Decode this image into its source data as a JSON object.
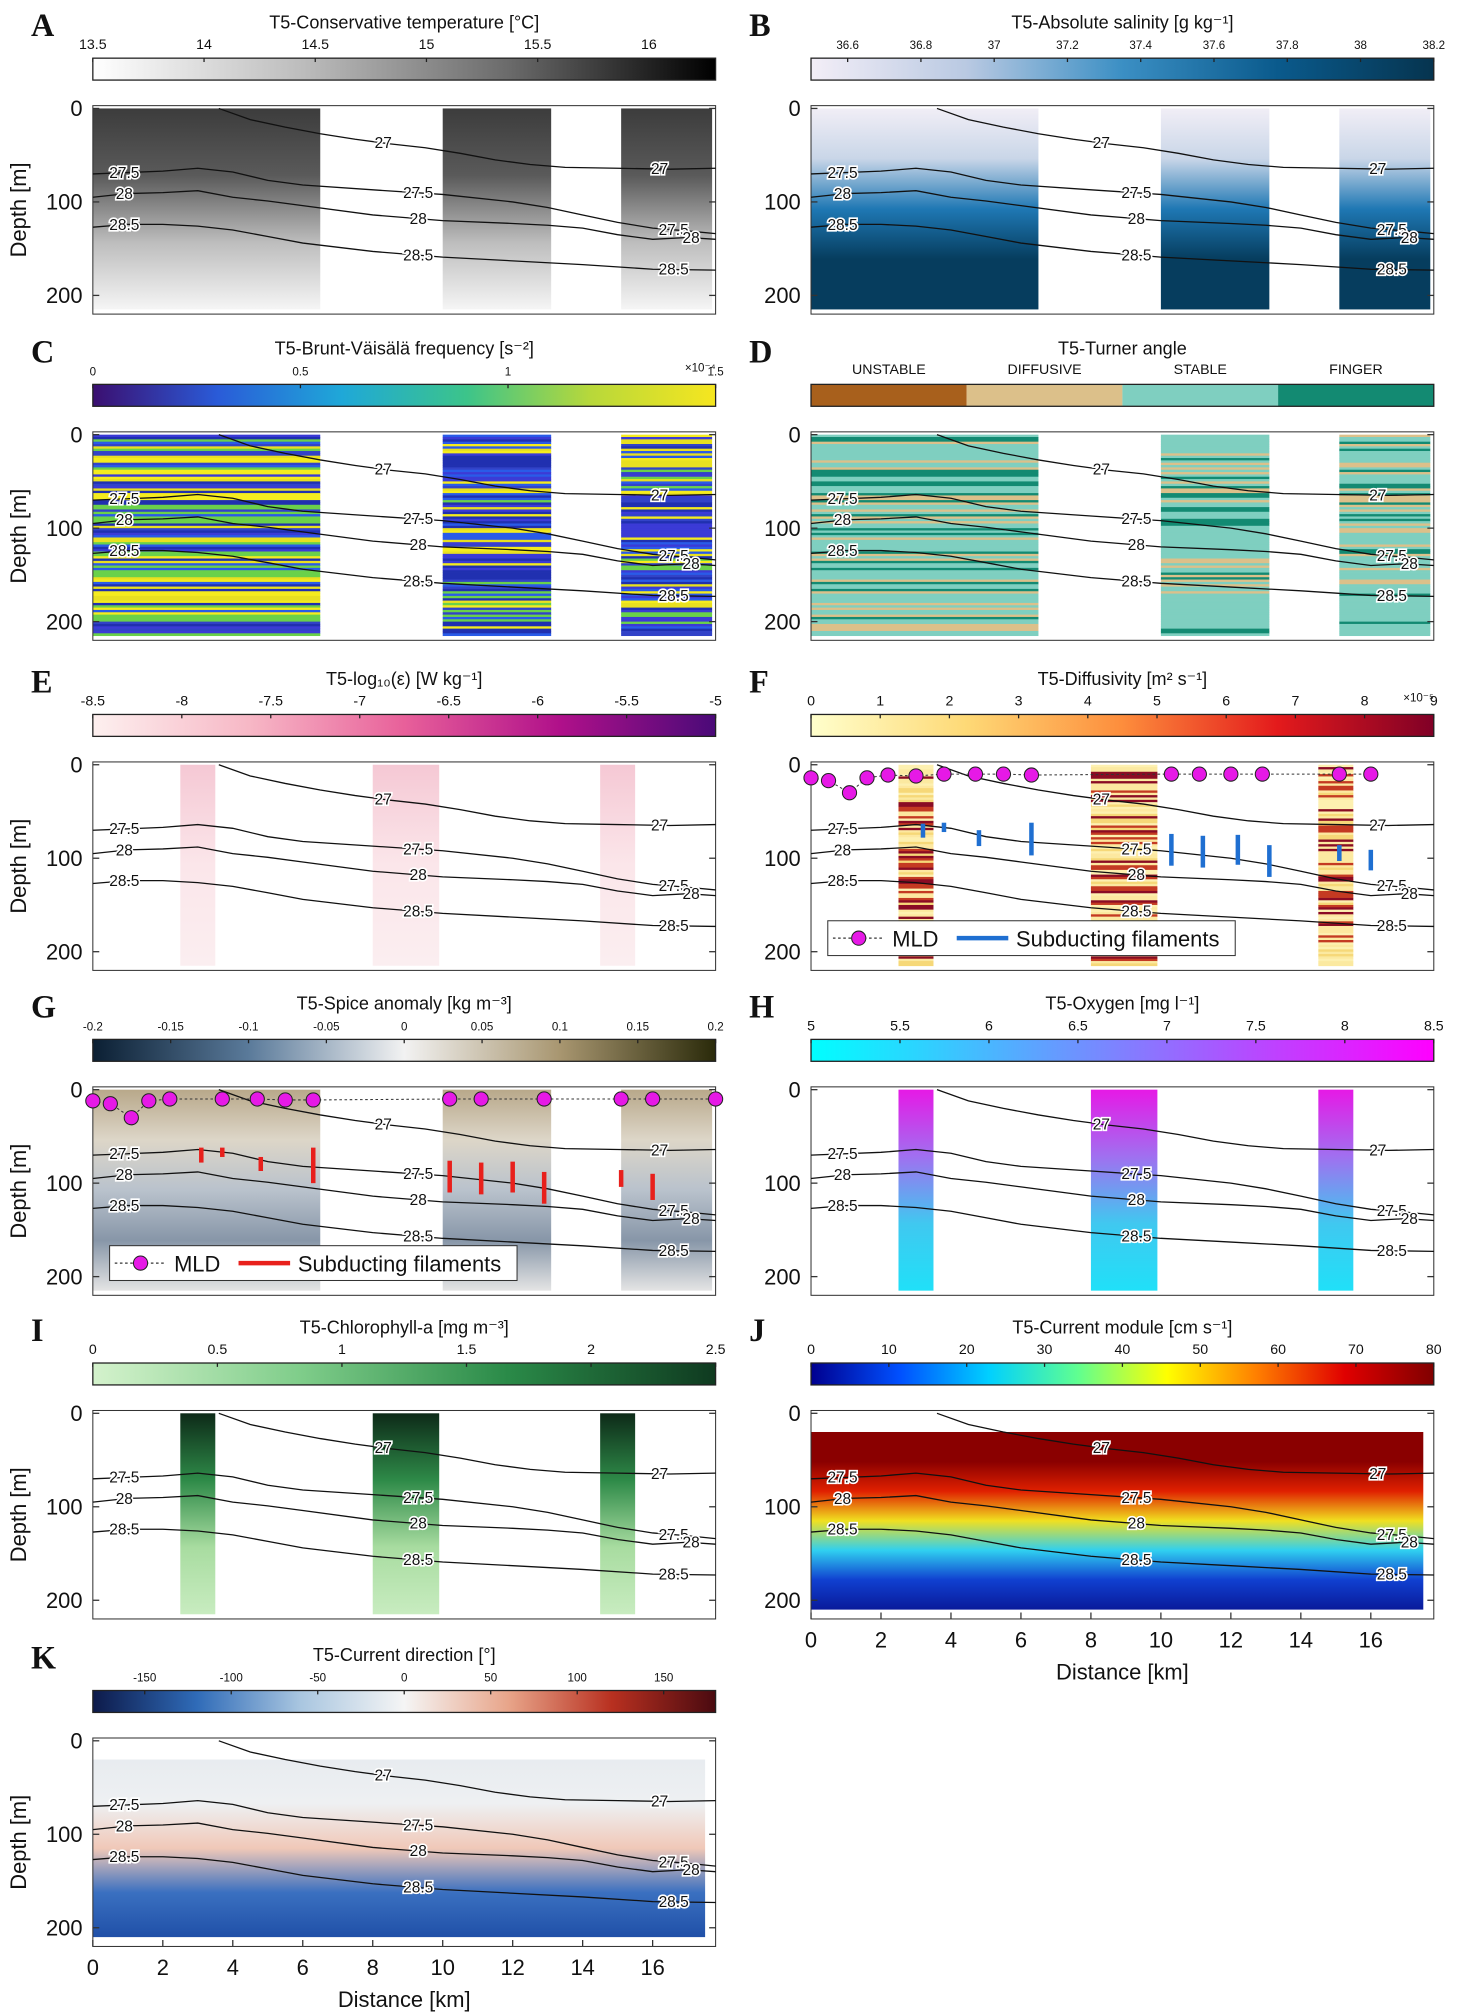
{
  "isopycnals": [
    {
      "level": 27,
      "distance": [
        3.6,
        4.5,
        5.5,
        6.5,
        7.5,
        8.5,
        9.5,
        10.5,
        11.5,
        12.5,
        13.5,
        15,
        16.5,
        17.8
      ],
      "depth": [
        0,
        12,
        20,
        27,
        33,
        38,
        42,
        48,
        55,
        60,
        63,
        64,
        65,
        64
      ]
    },
    {
      "level": 27.5,
      "distance": [
        0,
        2,
        3,
        4,
        5,
        6,
        8,
        10,
        12,
        13,
        14,
        15,
        16,
        17,
        17.8
      ],
      "depth": [
        70,
        67,
        64,
        68,
        77,
        82,
        87,
        92,
        100,
        106,
        114,
        122,
        128,
        131,
        134
      ]
    },
    {
      "level": 28,
      "distance": [
        0,
        1,
        2,
        3,
        4,
        5,
        6,
        8,
        10,
        12,
        13,
        14,
        15,
        16,
        17,
        17.8
      ],
      "depth": [
        95,
        91,
        90,
        88,
        95,
        99,
        104,
        114,
        120,
        123,
        125,
        128,
        135,
        140,
        138,
        140
      ]
    },
    {
      "level": 28.5,
      "distance": [
        0,
        1,
        2,
        3,
        4,
        5,
        6,
        8,
        10,
        12,
        14,
        16,
        17.8
      ],
      "depth": [
        127,
        124,
        124,
        126,
        130,
        137,
        144,
        153,
        159,
        163,
        167,
        172,
        173
      ]
    }
  ],
  "chart_data": [
    {
      "type": "section",
      "panel": "A",
      "title": "T5-Conservative temperature [°C]",
      "colorbar": {
        "lim": [
          13.5,
          16.3
        ],
        "ticks": [
          13.5,
          14,
          14.5,
          15,
          15.5,
          16
        ],
        "colormap": [
          "#ffffff",
          "#bdbdbd",
          "#6b6b6b",
          "#000000"
        ]
      },
      "ylabel": "Depth [m]",
      "ylim": [
        -3,
        220
      ],
      "yticks": [
        0,
        100,
        200
      ],
      "xlim": [
        0,
        17.8
      ]
    },
    {
      "type": "section",
      "panel": "B",
      "title": "T5-Absolute salinity [g kg⁻¹]",
      "colorbar": {
        "lim": [
          36.5,
          38.2
        ],
        "ticks": [
          36.6,
          36.8,
          37,
          37.2,
          37.4,
          37.6,
          37.8,
          38,
          38.2
        ],
        "colormap": [
          "#f3eef7",
          "#b9c9e2",
          "#3b8fc4",
          "#0a5a8c",
          "#06344f"
        ]
      },
      "ylim": [
        -3,
        220
      ],
      "yticks": [
        0,
        100,
        200
      ],
      "xlim": [
        0,
        17.8
      ]
    },
    {
      "type": "section",
      "panel": "C",
      "title": "T5-Brunt-Väisälä frequency [s⁻²]",
      "colorbar": {
        "lim": [
          0,
          1.5
        ],
        "ticks": [
          0,
          0.5,
          1,
          1.5
        ],
        "multiplier": "×10⁻⁴",
        "colormap": [
          "#3b0f70",
          "#2a5bd8",
          "#1fa8d8",
          "#3cc48a",
          "#b8d83a",
          "#f6e61f"
        ]
      },
      "ylabel": "Depth [m]",
      "ylim": [
        -3,
        220
      ],
      "yticks": [
        0,
        100,
        200
      ],
      "xlim": [
        0,
        17.8
      ]
    },
    {
      "type": "section",
      "panel": "D",
      "title": "T5-Turner angle",
      "colorbar": {
        "categories": [
          "UNSTABLE",
          "DIFFUSIVE",
          "STABLE",
          "FINGER"
        ],
        "colors": [
          "#a8601c",
          "#dcc08a",
          "#7fcfc0",
          "#138a72"
        ]
      },
      "ylim": [
        -3,
        220
      ],
      "yticks": [
        0,
        100,
        200
      ],
      "xlim": [
        0,
        17.8
      ]
    },
    {
      "type": "section",
      "panel": "E",
      "title": "T5-log₁₀(ε) [W kg⁻¹]",
      "colorbar": {
        "lim": [
          -8.5,
          -5
        ],
        "ticks": [
          -8.5,
          -8,
          -7.5,
          -7,
          -6.5,
          -6,
          -5.5,
          -5
        ],
        "colormap": [
          "#fdf0ef",
          "#f7b8c6",
          "#e8609a",
          "#b0108a",
          "#4a0a78"
        ]
      },
      "ylabel": "Depth [m]",
      "ylim": [
        -3,
        220
      ],
      "yticks": [
        0,
        100,
        200
      ],
      "xlim": [
        0,
        17.8
      ]
    },
    {
      "type": "section",
      "panel": "F",
      "title": "T5-Diffusivity [m² s⁻¹]",
      "colorbar": {
        "lim": [
          0,
          9
        ],
        "ticks": [
          0,
          1,
          2,
          3,
          4,
          5,
          6,
          7,
          8,
          9
        ],
        "multiplier": "×10⁻⁵",
        "colormap": [
          "#ffffcc",
          "#fed976",
          "#fd8d3c",
          "#e31a1c",
          "#800026"
        ]
      },
      "ylim": [
        -3,
        220
      ],
      "yticks": [
        0,
        100,
        200
      ],
      "xlim": [
        0,
        17.8
      ],
      "mld": {
        "name": "MLD",
        "color": "#e619e6",
        "x": [
          0,
          0.5,
          1.1,
          1.6,
          2.2,
          3.0,
          3.8,
          4.7,
          5.5,
          6.3,
          10.3,
          11.1,
          12.0,
          12.9,
          15.1,
          16.0
        ],
        "depth": [
          14,
          17,
          30,
          14,
          11,
          12,
          10,
          10,
          10,
          11,
          10,
          10,
          10,
          10,
          10,
          10
        ]
      },
      "filaments": {
        "name": "Subducting filaments",
        "color": "#1f6fd1",
        "x": [
          3.2,
          3.8,
          4.8,
          6.3,
          10.3,
          11.2,
          12.2,
          13.1,
          15.1,
          16.0
        ],
        "top": [
          63,
          62,
          70,
          62,
          74,
          76,
          75,
          86,
          86,
          91
        ],
        "bottom": [
          78,
          72,
          87,
          97,
          108,
          110,
          107,
          120,
          103,
          113
        ]
      }
    },
    {
      "type": "section",
      "panel": "G",
      "title": "T5-Spice anomaly [kg m⁻³]",
      "colorbar": {
        "lim": [
          -0.2,
          0.2
        ],
        "ticks": [
          -0.2,
          -0.15,
          -0.1,
          -0.05,
          0,
          0.05,
          0.1,
          0.15,
          0.2
        ],
        "colormap": [
          "#0b1f33",
          "#5a7a9a",
          "#f2f2f2",
          "#a89670",
          "#2a2a0a"
        ]
      },
      "ylabel": "Depth [m]",
      "ylim": [
        -3,
        220
      ],
      "yticks": [
        0,
        100,
        200
      ],
      "xlim": [
        0,
        17.8
      ],
      "mld": {
        "name": "MLD",
        "color": "#e619e6",
        "x": [
          0,
          0.5,
          1.1,
          1.6,
          2.2,
          3.7,
          4.7,
          5.5,
          6.3,
          10.2,
          11.1,
          12.9,
          15.1,
          16.0,
          17.8
        ],
        "depth": [
          12,
          15,
          30,
          12,
          10,
          10,
          10,
          11,
          11,
          10,
          10,
          10,
          10,
          10,
          10
        ]
      },
      "filaments": {
        "name": "Subducting filaments",
        "color": "#e8201c",
        "x": [
          3.1,
          3.7,
          4.8,
          6.3,
          10.2,
          11.1,
          12.0,
          12.9,
          15.1,
          16.0
        ],
        "top": [
          62,
          62,
          72,
          62,
          76,
          78,
          77,
          88,
          86,
          90
        ],
        "bottom": [
          78,
          72,
          87,
          100,
          110,
          112,
          110,
          122,
          104,
          118
        ]
      }
    },
    {
      "type": "section",
      "panel": "H",
      "title": "T5-Oxygen [mg l⁻¹]",
      "colorbar": {
        "lim": [
          5,
          8.5
        ],
        "ticks": [
          5,
          5.5,
          6,
          6.5,
          7,
          7.5,
          8,
          8.5
        ],
        "colormap": [
          "#00ffff",
          "#8080ff",
          "#ff00ff"
        ]
      },
      "ylim": [
        -3,
        220
      ],
      "yticks": [
        0,
        100,
        200
      ],
      "xlim": [
        0,
        17.8
      ]
    },
    {
      "type": "section",
      "panel": "I",
      "title": "T5-Chlorophyll-a [mg m⁻³]",
      "colorbar": {
        "lim": [
          0,
          2.5
        ],
        "ticks": [
          0,
          0.5,
          1,
          1.5,
          2,
          2.5
        ],
        "colormap": [
          "#d4f2cc",
          "#7fcd8a",
          "#2a8a48",
          "#0f3a20"
        ]
      },
      "ylabel": "Depth [m]",
      "ylim": [
        -3,
        220
      ],
      "yticks": [
        0,
        100,
        200
      ],
      "xlim": [
        0,
        17.8
      ]
    },
    {
      "type": "section",
      "panel": "J",
      "title": "T5-Current module [cm s⁻¹]",
      "colorbar": {
        "lim": [
          0,
          80
        ],
        "ticks": [
          0,
          10,
          20,
          30,
          40,
          50,
          60,
          70,
          80
        ],
        "colormap": [
          "#00008f",
          "#0050ff",
          "#00d0ff",
          "#60ff90",
          "#ffff00",
          "#ff8000",
          "#e00000",
          "#800000"
        ]
      },
      "ylim": [
        -3,
        220
      ],
      "yticks": [
        0,
        100,
        200
      ],
      "xlim": [
        0,
        17.8
      ],
      "xticks": [
        0,
        2,
        4,
        6,
        8,
        10,
        12,
        14,
        16
      ],
      "xlabel": "Distance [km]"
    },
    {
      "type": "section",
      "panel": "K",
      "title": "T5-Current direction [°]",
      "colorbar": {
        "lim": [
          -180,
          180
        ],
        "ticks": [
          -150,
          -100,
          -50,
          0,
          50,
          100,
          150
        ],
        "colormap": [
          "#0d1a4a",
          "#2f6bb8",
          "#a9c6e0",
          "#f5f5f5",
          "#e8a58a",
          "#b83020",
          "#4a0a10"
        ]
      },
      "ylabel": "Depth [m]",
      "ylim": [
        -3,
        220
      ],
      "yticks": [
        0,
        100,
        200
      ],
      "xlim": [
        0,
        17.8
      ],
      "xticks": [
        0,
        2,
        4,
        6,
        8,
        10,
        12,
        14,
        16
      ],
      "xlabel": "Distance [km]"
    }
  ]
}
